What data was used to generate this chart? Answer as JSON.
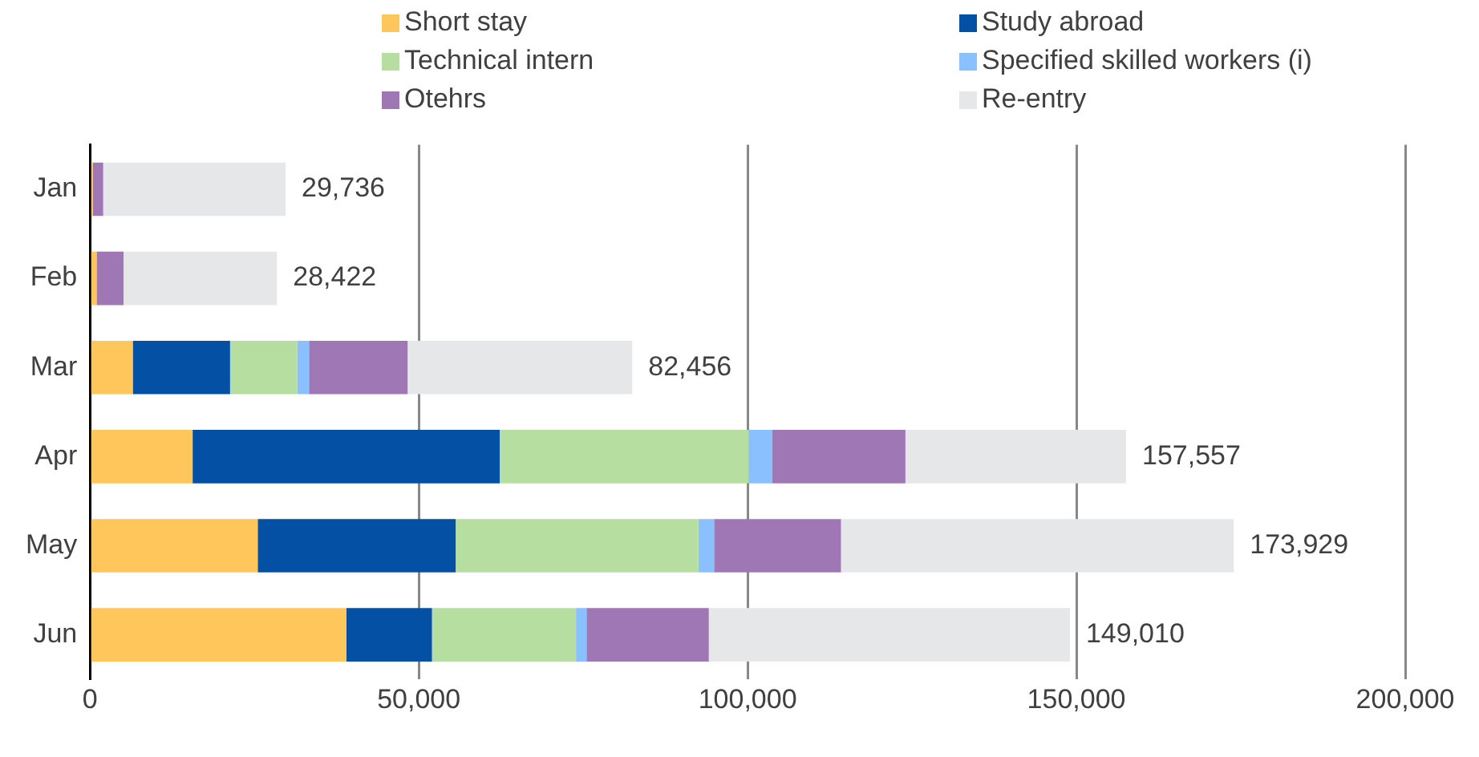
{
  "chart_data": {
    "type": "bar",
    "orientation": "horizontal",
    "stacked": true,
    "categories": [
      "Jan",
      "Feb",
      "Mar",
      "Apr",
      "May",
      "Jun"
    ],
    "series": [
      {
        "name": "Short stay",
        "color": "#ffc65c",
        "values": [
          400,
          1000,
          6500,
          15600,
          25500,
          39000
        ]
      },
      {
        "name": "Study abroad",
        "color": "#0450a5",
        "values": [
          0,
          0,
          14800,
          46700,
          30100,
          13000
        ]
      },
      {
        "name": "Technical intern",
        "color": "#b6dea0",
        "values": [
          0,
          0,
          10200,
          37900,
          36900,
          21900
        ]
      },
      {
        "name": "Specified skilled workers (i)",
        "color": "#8bc0ff",
        "values": [
          0,
          0,
          1800,
          3500,
          2400,
          1600
        ]
      },
      {
        "name": "Otehrs",
        "color": "#a077b5",
        "values": [
          1600,
          4100,
          15000,
          20300,
          19300,
          18600
        ]
      },
      {
        "name": "Re-entry",
        "color": "#e6e7e8",
        "values": [
          27736,
          23322,
          34156,
          33557,
          59729,
          54910
        ]
      }
    ],
    "totals": [
      "29,736",
      "28,422",
      "82,456",
      "157,557",
      "173,929",
      "149,010"
    ],
    "xlim": [
      0,
      200000
    ],
    "xticks": [
      {
        "value": 0,
        "label": "0"
      },
      {
        "value": 50000,
        "label": "50,000"
      },
      {
        "value": 100000,
        "label": "100,000"
      },
      {
        "value": 150000,
        "label": "150,000"
      },
      {
        "value": 200000,
        "label": "200,000"
      }
    ],
    "grid": "x",
    "legend": "top"
  }
}
